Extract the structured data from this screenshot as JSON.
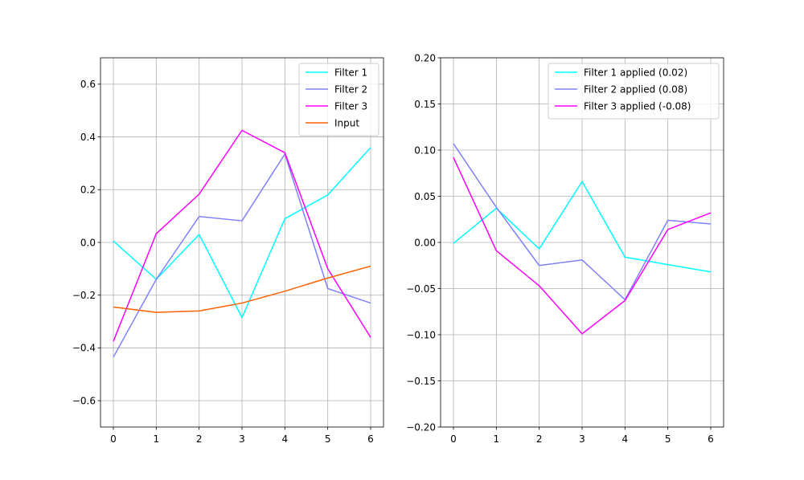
{
  "figure": {
    "background": "#ffffff"
  },
  "chart_data": [
    {
      "type": "line",
      "x": [
        0,
        1,
        2,
        3,
        4,
        5,
        6
      ],
      "xticks": [
        "0",
        "1",
        "2",
        "3",
        "4",
        "5",
        "6"
      ],
      "xlim": [
        -0.3,
        6.3
      ],
      "ylim": [
        -0.7,
        0.7
      ],
      "yticks": [
        "0.6",
        "0.4",
        "0.2",
        "0.0",
        "−0.2",
        "−0.4",
        "−0.6"
      ],
      "ytick_values": [
        0.6,
        0.4,
        0.2,
        0.0,
        -0.2,
        -0.4,
        -0.6
      ],
      "grid": true,
      "legend_position": "upper-right",
      "series": [
        {
          "name": "Filter 1",
          "color": "#00ffff",
          "values": [
            0.005,
            -0.14,
            0.03,
            -0.285,
            0.09,
            0.18,
            0.36
          ]
        },
        {
          "name": "Filter 2",
          "color": "#8080ff",
          "values": [
            -0.435,
            -0.14,
            0.098,
            0.082,
            0.335,
            -0.175,
            -0.23
          ]
        },
        {
          "name": "Filter 3",
          "color": "#ff00ff",
          "values": [
            -0.375,
            0.033,
            0.183,
            0.425,
            0.34,
            -0.1,
            -0.36
          ]
        },
        {
          "name": "Input",
          "color": "#ff6000",
          "values": [
            -0.245,
            -0.265,
            -0.26,
            -0.23,
            -0.185,
            -0.135,
            -0.09
          ]
        }
      ]
    },
    {
      "type": "line",
      "x": [
        0,
        1,
        2,
        3,
        4,
        5,
        6
      ],
      "xticks": [
        "0",
        "1",
        "2",
        "3",
        "4",
        "5",
        "6"
      ],
      "xlim": [
        -0.3,
        6.3
      ],
      "ylim": [
        -0.2,
        0.2
      ],
      "yticks": [
        "0.20",
        "0.15",
        "0.10",
        "0.05",
        "0.00",
        "−0.05",
        "−0.10",
        "−0.15",
        "−0.20"
      ],
      "ytick_values": [
        0.2,
        0.15,
        0.1,
        0.05,
        0.0,
        -0.05,
        -0.1,
        -0.15,
        -0.2
      ],
      "grid": true,
      "legend_position": "upper-right",
      "series": [
        {
          "name": "Filter 1 applied (0.02)",
          "color": "#00ffff",
          "values": [
            -0.001,
            0.037,
            -0.007,
            0.066,
            -0.016,
            -0.024,
            -0.032
          ]
        },
        {
          "name": "Filter 2 applied (0.08)",
          "color": "#8080ff",
          "values": [
            0.107,
            0.038,
            -0.025,
            -0.019,
            -0.062,
            0.024,
            0.02
          ]
        },
        {
          "name": "Filter 3 applied (-0.08)",
          "color": "#ff00ff",
          "values": [
            0.092,
            -0.009,
            -0.047,
            -0.099,
            -0.063,
            0.014,
            0.032
          ]
        }
      ]
    }
  ]
}
